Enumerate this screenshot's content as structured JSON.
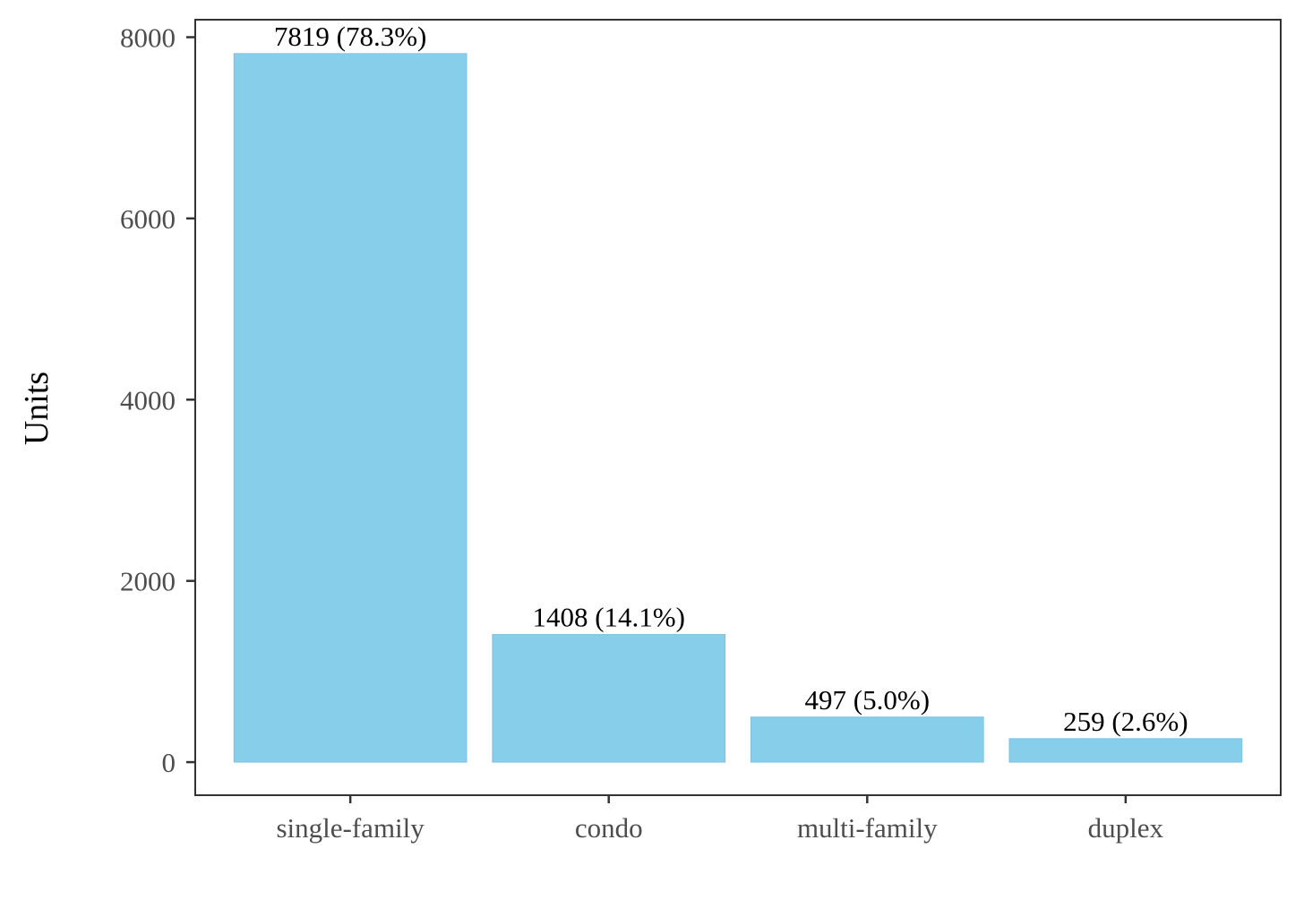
{
  "chart_data": {
    "type": "bar",
    "title": "",
    "xlabel": "",
    "ylabel": "Units",
    "categories": [
      "single-family",
      "condo",
      "multi-family",
      "duplex"
    ],
    "values": [
      7819,
      1408,
      497,
      259
    ],
    "data_labels": [
      "7819 (78.3%)",
      "1408 (14.1%)",
      "497 (5.0%)",
      "259 (2.6%)"
    ],
    "ylim": [
      -365,
      8193
    ],
    "yticks": [
      0,
      2000,
      4000,
      6000,
      8000
    ],
    "ytick_labels": [
      "0",
      "2000",
      "4000",
      "6000",
      "8000"
    ],
    "grid": false,
    "legend": "none",
    "colors": {
      "bar_fill": "#87ceeb",
      "bar_stroke": "#7ec0e0",
      "panel_border": "#333333",
      "tick_text": "#4d4d4d",
      "axis_title_text": "#000000",
      "data_label_text": "#000000"
    }
  }
}
